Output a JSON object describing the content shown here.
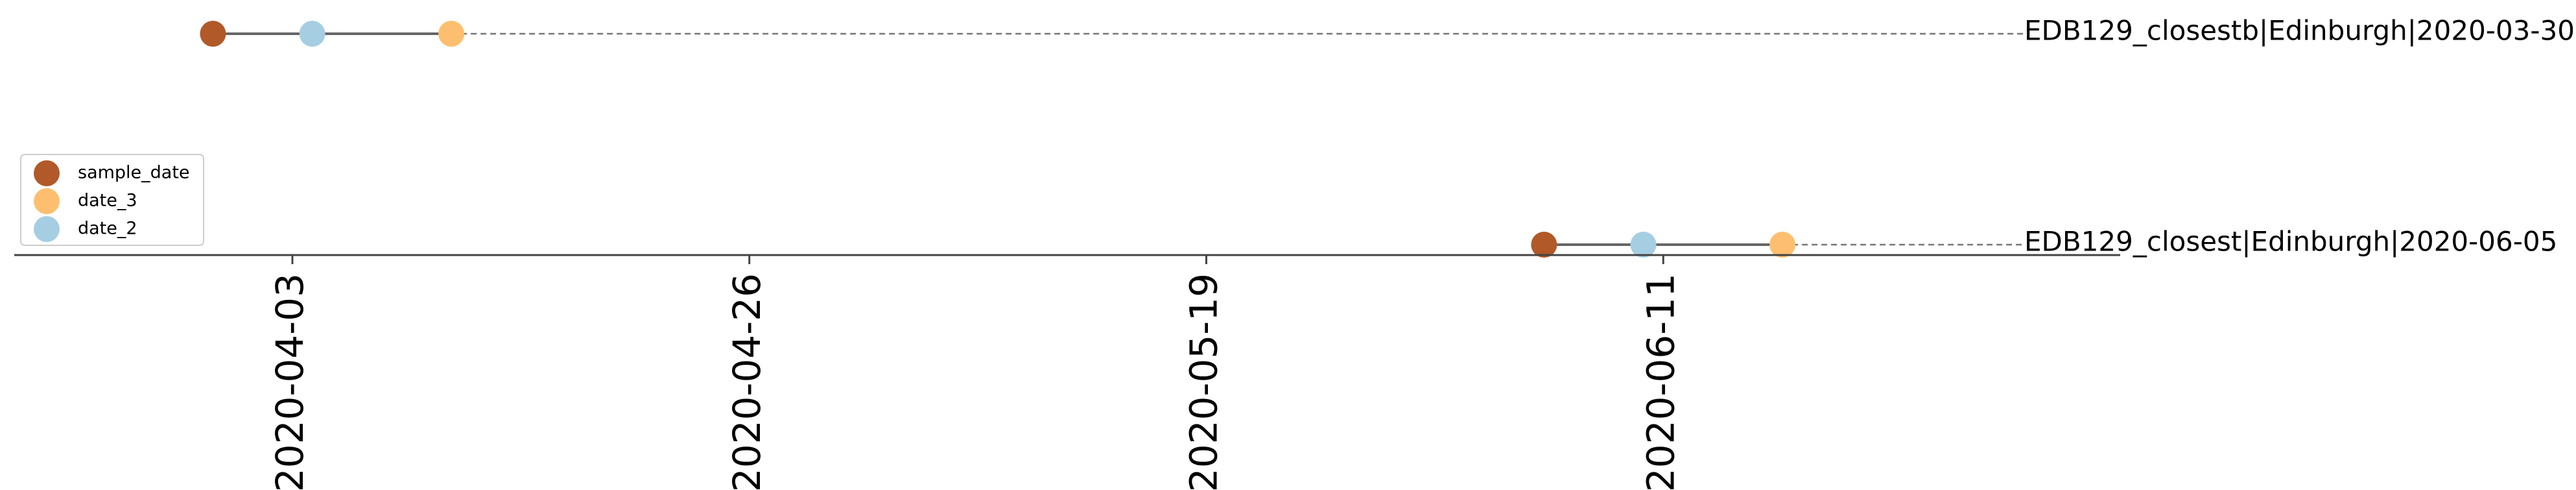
{
  "chart_data": {
    "type": "scatter",
    "title": "",
    "xlabel": "",
    "ylabel": "",
    "x_axis_type": "date",
    "xlim": [
      "2020-03-20",
      "2020-07-04"
    ],
    "x_ticks": [
      "2020-04-03",
      "2020-04-26",
      "2020-05-19",
      "2020-06-11"
    ],
    "tick_label_rotation": "vertical",
    "grid": false,
    "legend": {
      "position": "upper-left",
      "entries": [
        {
          "name": "sample_date",
          "color": "#B15928"
        },
        {
          "name": "date_3",
          "color": "#FDBF6F"
        },
        {
          "name": "date_2",
          "color": "#A6CEE3"
        }
      ]
    },
    "rows": [
      {
        "label": "EDB129_closestb|Edinburgh|2020-03-30",
        "sample_date": "2020-03-30",
        "date_2": "2020-04-04",
        "date_3": "2020-04-11"
      },
      {
        "label": "EDB129_closest|Edinburgh|2020-06-05",
        "sample_date": "2020-06-05",
        "date_2": "2020-06-10",
        "date_3": "2020-06-17"
      }
    ],
    "colors": {
      "sample_date": "#B15928",
      "date_3": "#FDBF6F",
      "date_2": "#A6CEE3",
      "connector": "#666666",
      "dashed_line": "#777777",
      "axis": "#444444"
    }
  }
}
